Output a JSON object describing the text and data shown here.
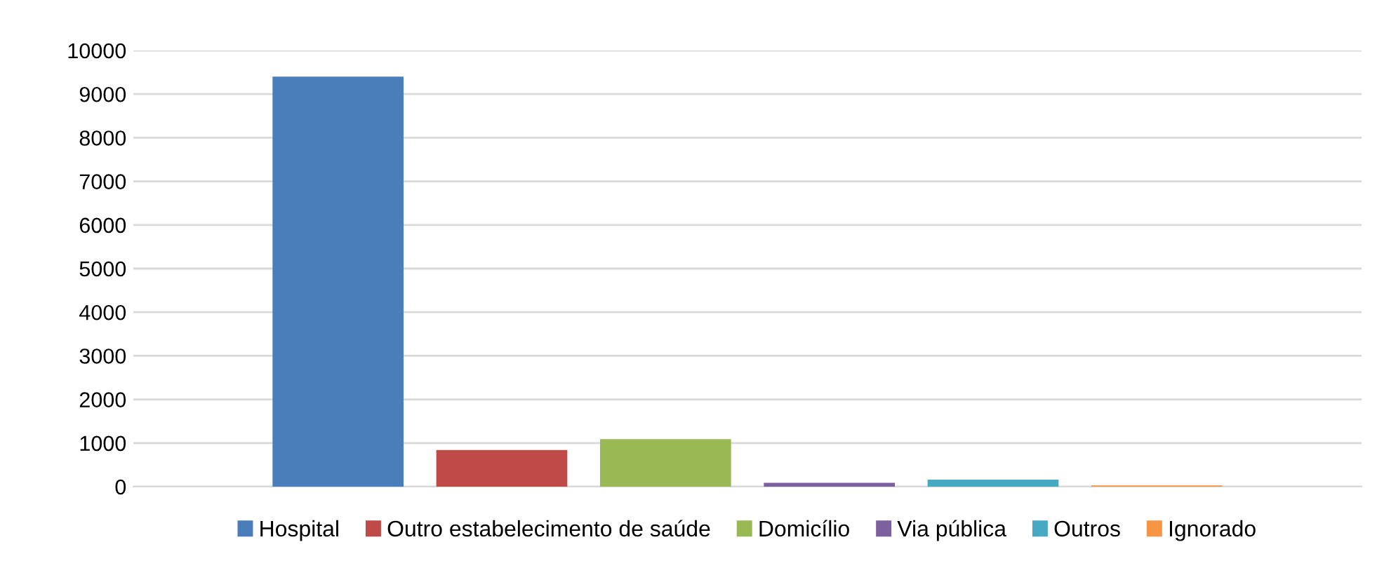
{
  "chart_data": {
    "type": "bar",
    "categories": [
      null
    ],
    "series": [
      {
        "name": "Hospital",
        "color": "#4a7ebb",
        "values": [
          9400
        ]
      },
      {
        "name": "Outro estabelecimento de saúde",
        "color": "#be4b48",
        "values": [
          840
        ]
      },
      {
        "name": "Domicílio",
        "color": "#98b954",
        "values": [
          1090
        ]
      },
      {
        "name": "Via pública",
        "color": "#7d60a0",
        "values": [
          90
        ]
      },
      {
        "name": "Outros",
        "color": "#46aac5",
        "values": [
          160
        ]
      },
      {
        "name": "Ignorado",
        "color": "#f69546",
        "values": [
          30
        ]
      }
    ],
    "ylim": [
      0,
      10000
    ],
    "yticks": [
      0,
      1000,
      2000,
      3000,
      4000,
      5000,
      6000,
      7000,
      8000,
      9000,
      10000
    ],
    "grid": "y",
    "legend": "bottom"
  }
}
